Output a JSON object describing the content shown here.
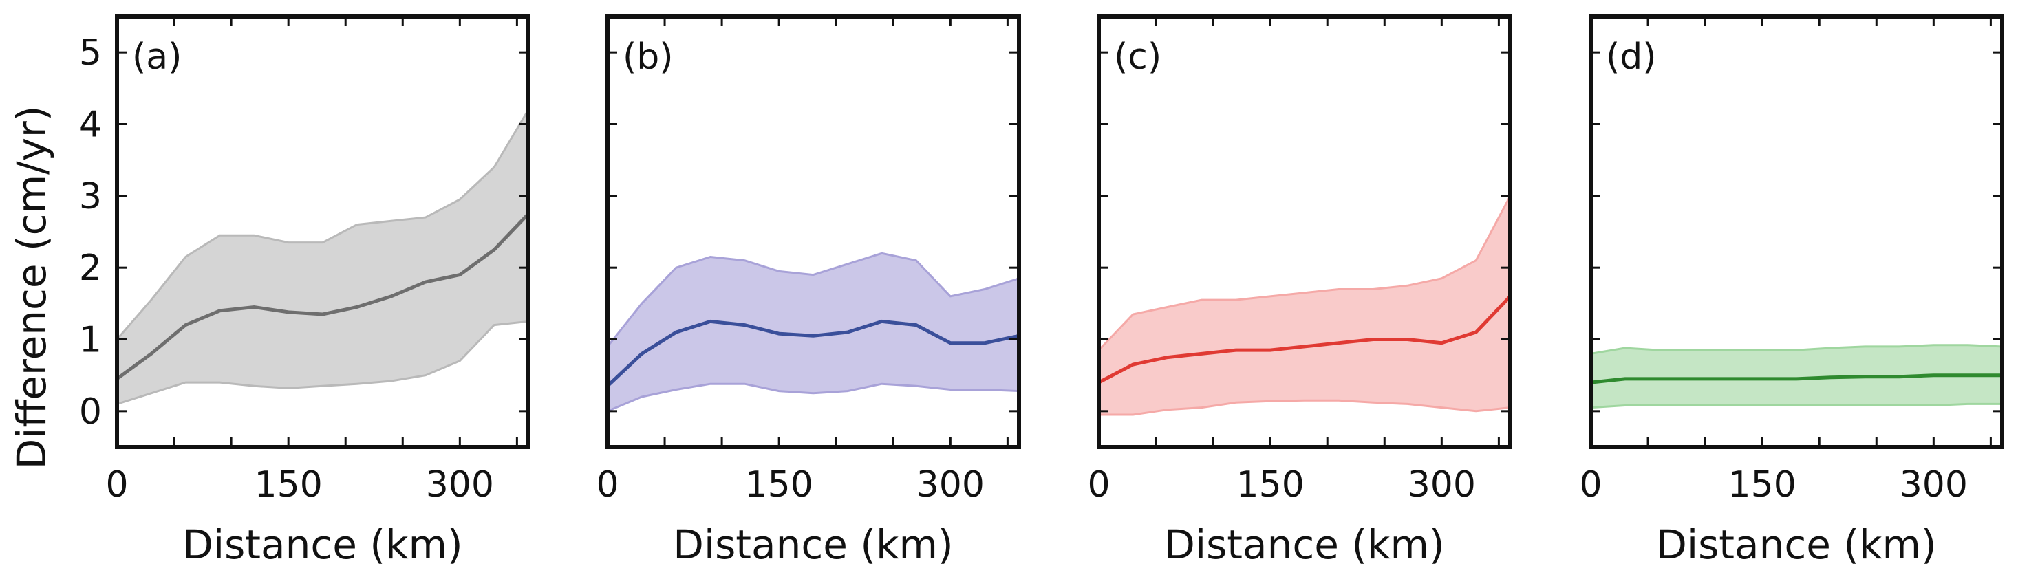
{
  "figure": {
    "ylabel": "Difference (cm/yr)",
    "yticks": [
      0,
      1,
      2,
      3,
      4,
      5
    ],
    "ylim": [
      -0.5,
      5.5
    ],
    "xlim": [
      0,
      360
    ],
    "xticks": [
      0,
      150,
      300
    ],
    "xminor_ticks": [
      50,
      100,
      200,
      250,
      350
    ]
  },
  "chart_data": [
    {
      "type": "area",
      "tag": "(a)",
      "xlabel": "Distance (km)",
      "color": "#6e6e6e",
      "fill_color": "#b9b9b9",
      "x": [
        0,
        30,
        60,
        90,
        120,
        150,
        180,
        210,
        240,
        270,
        300,
        330,
        360
      ],
      "mean": [
        0.45,
        0.8,
        1.2,
        1.4,
        1.45,
        1.38,
        1.35,
        1.45,
        1.6,
        1.8,
        1.9,
        2.25,
        2.75
      ],
      "upper": [
        1.0,
        1.55,
        2.15,
        2.45,
        2.45,
        2.35,
        2.35,
        2.6,
        2.65,
        2.7,
        2.95,
        3.4,
        4.2
      ],
      "lower": [
        0.1,
        0.25,
        0.4,
        0.4,
        0.35,
        0.32,
        0.35,
        0.38,
        0.42,
        0.5,
        0.7,
        1.2,
        1.25
      ]
    },
    {
      "type": "area",
      "tag": "(b)",
      "xlabel": "Distance (km)",
      "color": "#3a4f9a",
      "fill_color": "#a8a2d8",
      "x": [
        0,
        30,
        60,
        90,
        120,
        150,
        180,
        210,
        240,
        270,
        300,
        330,
        360
      ],
      "mean": [
        0.35,
        0.8,
        1.1,
        1.25,
        1.2,
        1.08,
        1.05,
        1.1,
        1.25,
        1.2,
        0.95,
        0.95,
        1.05
      ],
      "upper": [
        0.9,
        1.5,
        2.0,
        2.15,
        2.1,
        1.95,
        1.9,
        2.05,
        2.2,
        2.1,
        1.6,
        1.7,
        1.85
      ],
      "lower": [
        0.0,
        0.2,
        0.3,
        0.38,
        0.38,
        0.28,
        0.25,
        0.28,
        0.38,
        0.35,
        0.3,
        0.3,
        0.28
      ]
    },
    {
      "type": "area",
      "tag": "(c)",
      "xlabel": "Distance (km)",
      "color": "#e03a33",
      "fill_color": "#f5a9a7",
      "x": [
        0,
        30,
        60,
        90,
        120,
        150,
        180,
        210,
        240,
        270,
        300,
        330,
        360
      ],
      "mean": [
        0.4,
        0.65,
        0.75,
        0.8,
        0.85,
        0.85,
        0.9,
        0.95,
        1.0,
        1.0,
        0.95,
        1.1,
        1.6
      ],
      "upper": [
        0.85,
        1.35,
        1.45,
        1.55,
        1.55,
        1.6,
        1.65,
        1.7,
        1.7,
        1.75,
        1.85,
        2.1,
        3.0
      ],
      "lower": [
        -0.05,
        -0.05,
        0.02,
        0.05,
        0.12,
        0.14,
        0.15,
        0.15,
        0.12,
        0.1,
        0.05,
        0.0,
        0.05
      ]
    },
    {
      "type": "area",
      "tag": "(d)",
      "xlabel": "Distance (km)",
      "color": "#2f8a2f",
      "fill_color": "#9fd69f",
      "x": [
        0,
        30,
        60,
        90,
        120,
        150,
        180,
        210,
        240,
        270,
        300,
        330,
        360
      ],
      "mean": [
        0.4,
        0.45,
        0.45,
        0.45,
        0.45,
        0.45,
        0.45,
        0.47,
        0.48,
        0.48,
        0.5,
        0.5,
        0.5
      ],
      "upper": [
        0.8,
        0.88,
        0.85,
        0.85,
        0.85,
        0.85,
        0.85,
        0.88,
        0.9,
        0.9,
        0.92,
        0.92,
        0.9
      ],
      "lower": [
        0.05,
        0.08,
        0.08,
        0.08,
        0.08,
        0.08,
        0.08,
        0.08,
        0.08,
        0.08,
        0.08,
        0.1,
        0.1
      ]
    }
  ]
}
